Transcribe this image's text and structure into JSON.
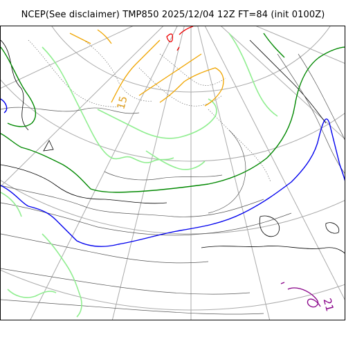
{
  "title": "NCEP(See disclaimer) TMP850 2025/12/04 12Z FT=84 (init 0100Z)",
  "map": {
    "contour_labels": [
      {
        "text": "15",
        "color": "#e0a020"
      },
      {
        "text": "21",
        "color": "#880088"
      }
    ],
    "colors": {
      "graticule": "#aaaaaa",
      "coast": "#000000",
      "isotherm_minor": "#555555",
      "isotherm_cold": "#0000ee",
      "isotherm_freezing": "#008800",
      "isotherm_light_green": "#90ee90",
      "isotherm_orange": "#f0a500",
      "isotherm_red": "#ee0000",
      "isotherm_purple": "#880088"
    }
  }
}
